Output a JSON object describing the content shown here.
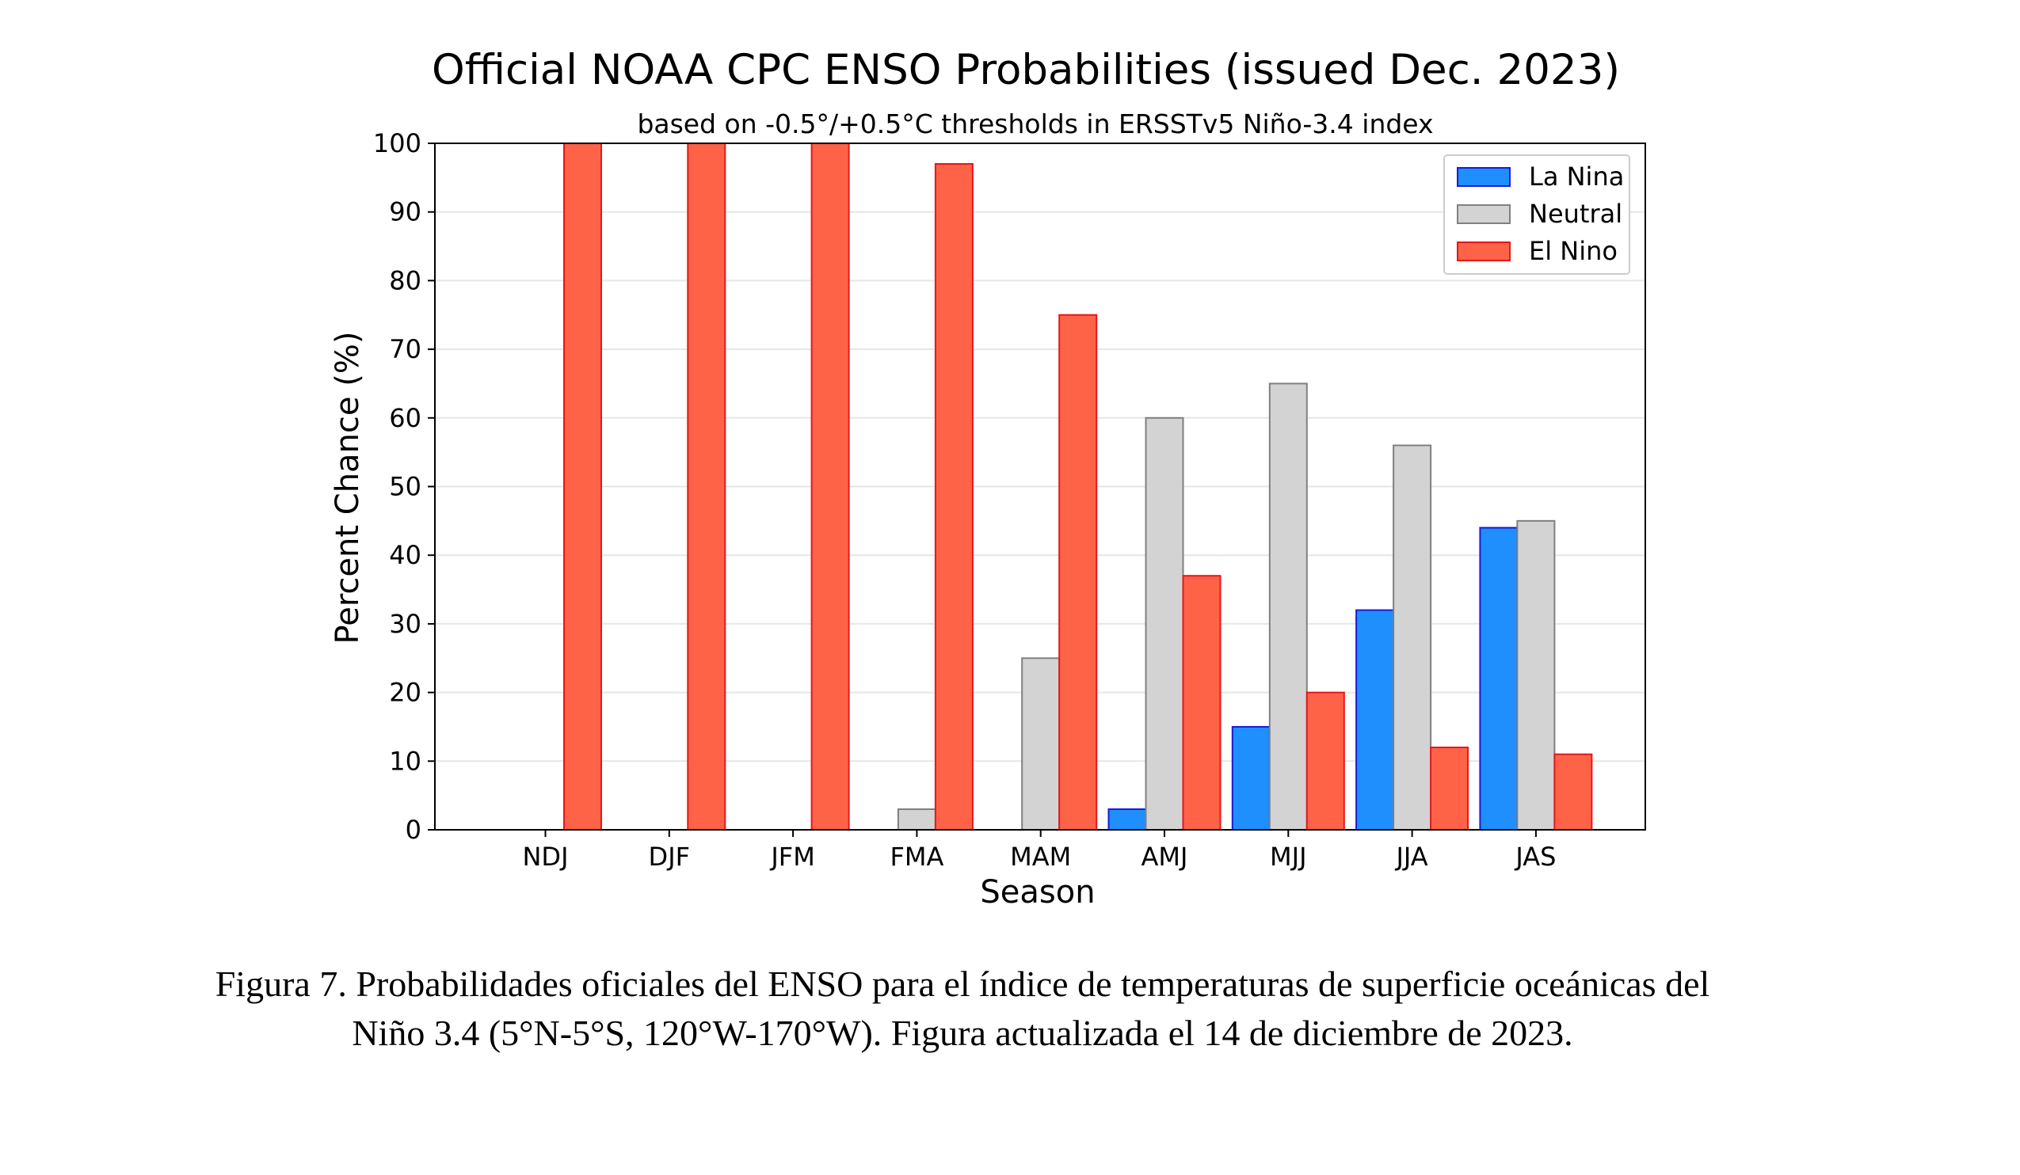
{
  "chart_data": {
    "type": "bar",
    "title": "Official NOAA CPC ENSO Probabilities (issued Dec. 2023)",
    "subtitle": "based on -0.5°/+0.5°C thresholds in ERSSTv5 Niño-3.4 index",
    "xlabel": "Season",
    "ylabel": "Percent Chance (%)",
    "ylim": [
      0,
      100
    ],
    "yticks": [
      "0",
      "10",
      "20",
      "30",
      "40",
      "50",
      "60",
      "70",
      "80",
      "90",
      "100"
    ],
    "categories": [
      "NDJ",
      "DJF",
      "JFM",
      "FMA",
      "MAM",
      "AMJ",
      "MJJ",
      "JJA",
      "JAS"
    ],
    "grid": true,
    "legend_position": "top-right",
    "series": [
      {
        "name": "La Nina",
        "color": "#1f8ffe",
        "edge": "#1a1adb",
        "values": [
          0,
          0,
          0,
          0,
          0,
          3,
          15,
          32,
          44
        ]
      },
      {
        "name": "Neutral",
        "color": "#d3d3d3",
        "edge": "#808080",
        "values": [
          0,
          0,
          0,
          3,
          25,
          60,
          65,
          56,
          45
        ]
      },
      {
        "name": "El Nino",
        "color": "#ff6347",
        "edge": "#e8161a",
        "values": [
          100,
          100,
          100,
          97,
          75,
          37,
          20,
          12,
          11
        ]
      }
    ]
  },
  "caption": {
    "line1": "Figura 7. Probabilidades oficiales del ENSO para el índice de temperaturas de superficie oceánicas del",
    "line2": "Niño 3.4 (5°N-5°S, 120°W-170°W). Figura actualizada el 14 de diciembre de 2023."
  }
}
